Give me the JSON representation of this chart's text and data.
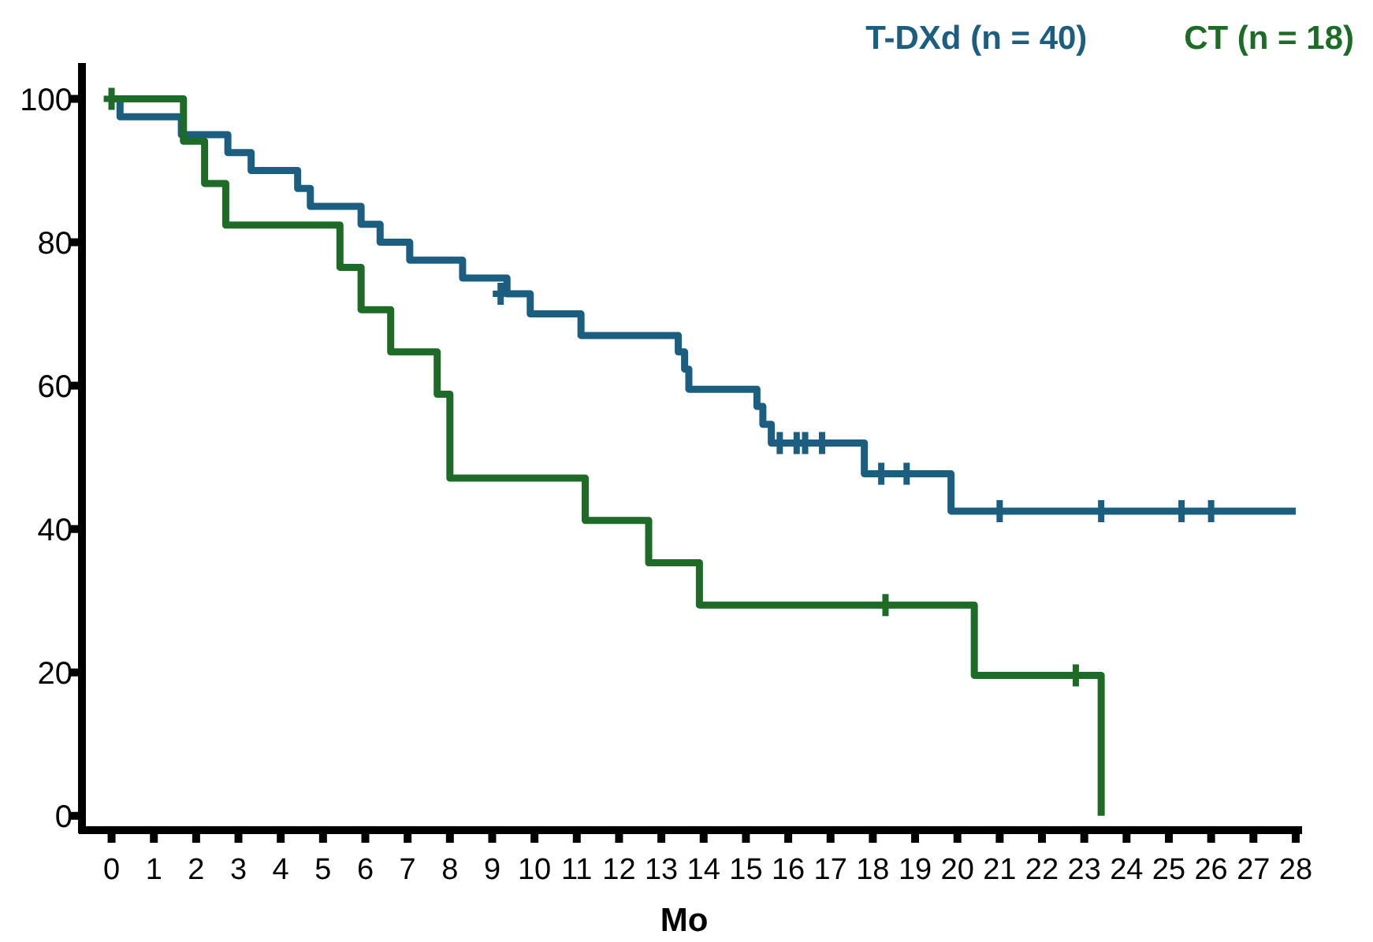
{
  "chart_data": {
    "type": "step",
    "xlabel": "Mo",
    "xlim": [
      -0.7,
      28.15
    ],
    "ylim": [
      -2,
      105
    ],
    "xticks": [
      0,
      1,
      2,
      3,
      4,
      5,
      6,
      7,
      8,
      9,
      10,
      11,
      12,
      13,
      14,
      15,
      16,
      17,
      18,
      19,
      20,
      21,
      22,
      23,
      24,
      25,
      26,
      27,
      28
    ],
    "yticks": [
      0,
      20,
      40,
      60,
      80,
      100
    ],
    "grid": false,
    "legend": "top right",
    "line_style": "solid",
    "series": [
      {
        "name": "T-DXd (n = 40)",
        "color": "#1b5e80",
        "x": [
          0,
          0.2,
          1.65,
          2.75,
          3.3,
          4.4,
          4.7,
          5.9,
          6.35,
          7.05,
          8.3,
          9.35,
          9.9,
          11.1,
          13.4,
          13.55,
          13.65,
          15.26,
          15.4,
          15.6,
          17.8,
          19.85,
          28
        ],
        "values": [
          100,
          97.5,
          95,
          92.5,
          90,
          87.5,
          85,
          82.5,
          80,
          77.5,
          75,
          72.8,
          70,
          67,
          64.7,
          62.3,
          59.5,
          57.1,
          54.6,
          52,
          47.7,
          42.5,
          42.5
        ]
      },
      {
        "name": "CT (n = 18)",
        "color": "#1e6b28",
        "x": [
          0,
          1.7,
          2.2,
          2.7,
          5.4,
          5.9,
          6.6,
          7.7,
          8.0,
          11.2,
          12.7,
          13.9,
          20.4,
          23.4
        ],
        "values": [
          100,
          94.1,
          88.2,
          82.4,
          76.5,
          70.6,
          64.7,
          58.8,
          47.1,
          41.2,
          35.3,
          29.4,
          19.6,
          0
        ]
      },
      {
        "type": "scatter",
        "marker": "cross",
        "color": "#1b5e80",
        "x": [
          9.2,
          15.8,
          16.2,
          16.4,
          16.8,
          18.2,
          18.8,
          21.0,
          23.4,
          25.3,
          26.0
        ],
        "values": [
          72.8,
          52,
          52,
          52,
          52,
          47.7,
          47.7,
          42.5,
          42.5,
          42.5,
          42.5
        ]
      },
      {
        "type": "scatter",
        "marker": "cross",
        "color": "#1e6b28",
        "x": [
          0,
          18.3,
          22.8
        ],
        "values": [
          100,
          29.4,
          19.6
        ]
      }
    ]
  }
}
